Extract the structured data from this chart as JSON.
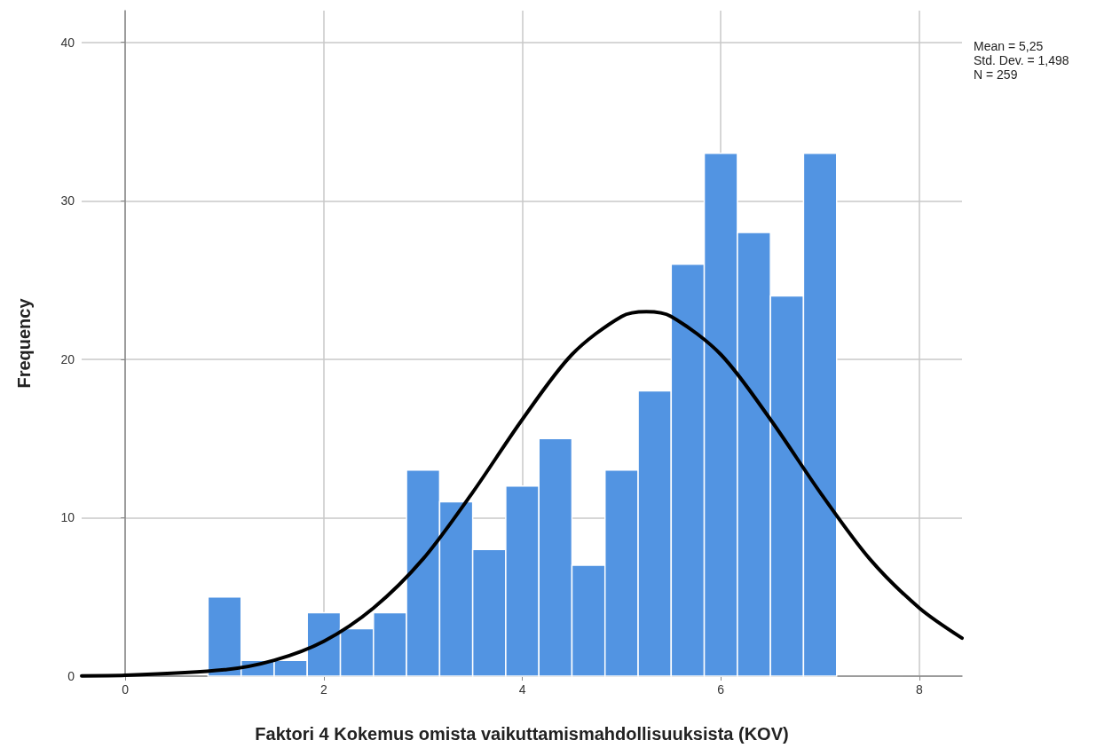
{
  "chart_data": {
    "type": "histogram",
    "xlabel": "Faktori 4 Kokemus omista vaikuttamismahdollisuuksista (KOV)",
    "ylabel": "Frequency",
    "bins": [
      0.833,
      1.167,
      1.5,
      1.833,
      2.167,
      2.5,
      2.833,
      3.167,
      3.5,
      3.833,
      4.167,
      4.5,
      4.833,
      5.167,
      5.5,
      5.833,
      6.167,
      6.5,
      6.833,
      7.167
    ],
    "values": [
      5,
      1,
      1,
      4,
      3,
      4,
      13,
      11,
      8,
      12,
      15,
      7,
      13,
      18,
      26,
      33,
      28,
      24,
      33
    ],
    "color": "#5294e2",
    "series": [
      {
        "type": "line",
        "color": "#000000",
        "x": [
          -0.44,
          0,
          1,
          1.5,
          2,
          2.5,
          3,
          3.5,
          4,
          4.5,
          5,
          5.25,
          5.5,
          6,
          6.5,
          7,
          7.5,
          8,
          8.43
        ],
        "values": [
          0.02,
          0.05,
          0.4,
          1.0,
          2.2,
          4.3,
          7.4,
          11.6,
          16.2,
          20.3,
          22.7,
          23,
          22.7,
          20.3,
          16.2,
          11.6,
          7.4,
          4.3,
          2.4
        ]
      }
    ],
    "marker": "none",
    "xlim": [
      -0.44,
      8.43
    ],
    "xticks": [
      0,
      2,
      4,
      6,
      8
    ],
    "ylim": [
      0,
      42
    ],
    "yticks": [
      0,
      10,
      20,
      30,
      40
    ],
    "grid": true,
    "annotations": [
      "Mean = 5,25",
      "Std. Dev. = 1,498",
      "N = 259"
    ]
  }
}
